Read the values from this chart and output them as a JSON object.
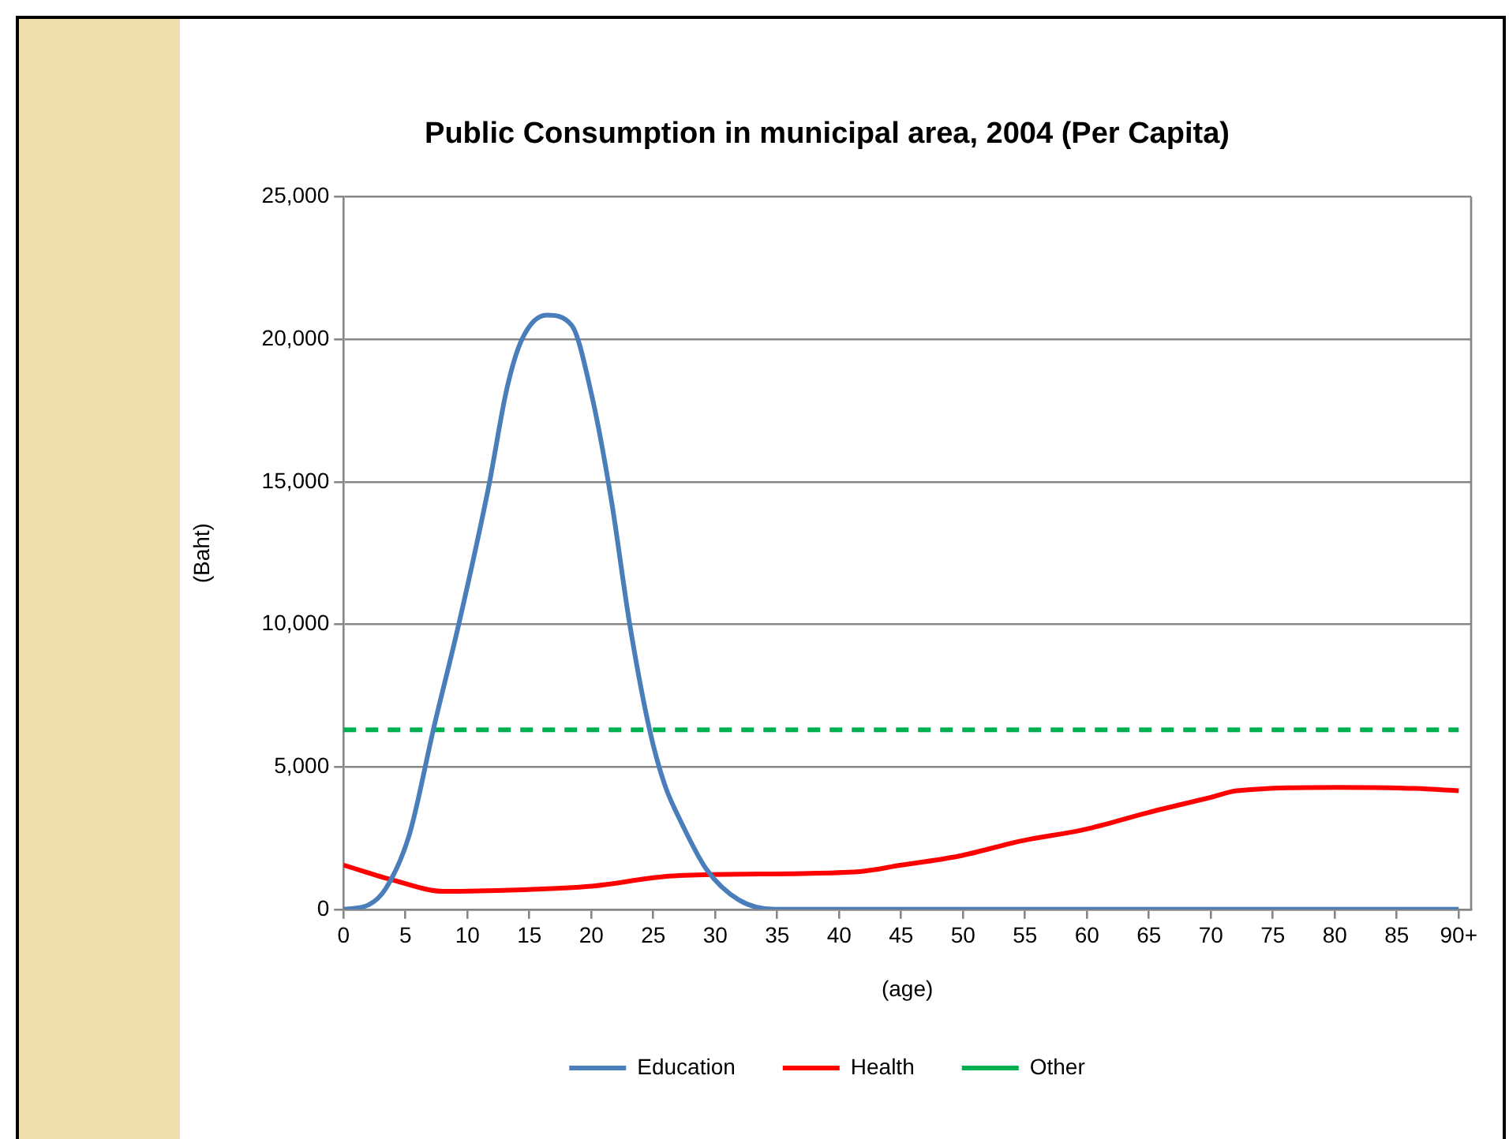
{
  "chart_data": {
    "type": "line",
    "title": "Public Consumption in municipal area, 2004 (Per Capita)",
    "xlabel": "(age)",
    "ylabel": "(Baht)",
    "xlim": [
      0,
      91
    ],
    "xticks": [
      0,
      5,
      10,
      15,
      20,
      25,
      30,
      35,
      40,
      45,
      50,
      55,
      60,
      65,
      70,
      75,
      80,
      85,
      {
        "value": 90,
        "label": "90+"
      }
    ],
    "ylim": [
      0,
      25000
    ],
    "yticks": [
      0,
      {
        "value": 5000,
        "label": "5,000"
      },
      {
        "value": 10000,
        "label": "10,000"
      },
      {
        "value": 15000,
        "label": "15,000"
      },
      {
        "value": 20000,
        "label": "20,000"
      },
      {
        "value": 25000,
        "label": "25,000"
      }
    ],
    "grid": "y",
    "legend": "bottom",
    "marker": "none",
    "series": [
      {
        "name": "Education",
        "color": "#4a7ebb",
        "line_style": "solid",
        "x": [
          0,
          2,
          3.4,
          5.3,
          7.3,
          9.3,
          11.7,
          13.2,
          14.4,
          16.4,
          18.4,
          20,
          21.6,
          23.1,
          24.7,
          25.9,
          27.2,
          29.3,
          31.9,
          34.8,
          40,
          50,
          60,
          70,
          80,
          90
        ],
        "values": [
          0,
          150,
          720,
          2600,
          6400,
          10000,
          14800,
          18300,
          20000,
          20850,
          20500,
          18100,
          14400,
          10000,
          6300,
          4400,
          3100,
          1400,
          330,
          0,
          0,
          0,
          0,
          0,
          0,
          0
        ]
      },
      {
        "name": "Health",
        "color": "#ff0000",
        "line_style": "solid",
        "x": [
          0,
          4.2,
          8.1,
          14,
          20,
          25.9,
          29.7,
          41.2,
          45,
          49.7,
          54.7,
          59.8,
          64.9,
          70,
          72.1,
          80.2,
          86.5,
          90
        ],
        "values": [
          1550,
          1000,
          630,
          680,
          810,
          1150,
          1220,
          1310,
          1550,
          1870,
          2400,
          2800,
          3390,
          3930,
          4160,
          4280,
          4240,
          4160
        ]
      },
      {
        "name": "Other",
        "color": "#00b050",
        "line_style": "dashed",
        "x": [
          0,
          90
        ],
        "values": [
          6300,
          6300
        ]
      }
    ]
  }
}
